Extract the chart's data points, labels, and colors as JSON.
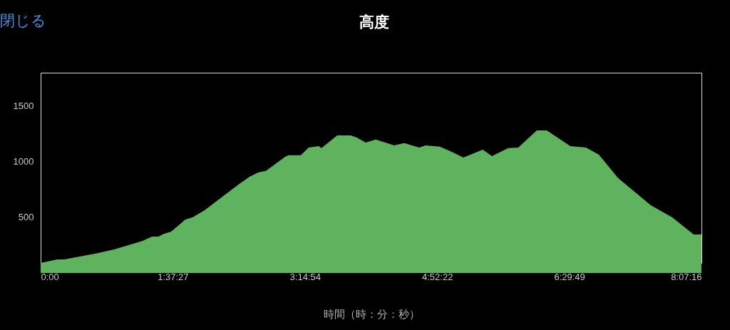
{
  "chart_data": {
    "type": "area",
    "title": "高度",
    "xlabel": "時間（時：分：秒）",
    "annotations": [
      "閉じる"
    ],
    "x": [
      0,
      0.2015,
      0.289,
      0.666,
      0.902,
      1.253,
      1.367,
      1.446,
      1.516,
      1.603,
      1.779,
      1.866,
      2.015,
      2.418,
      2.567,
      2.672,
      2.769,
      3.005,
      3.049,
      3.198,
      3.294,
      3.417,
      3.452,
      3.645,
      3.811,
      3.881,
      3.995,
      4.118,
      4.345,
      4.468,
      4.652,
      4.731,
      4.906,
      5.046,
      5.195,
      5.432,
      5.546,
      5.747,
      5.87,
      6.098,
      6.22,
      6.509,
      6.702,
      6.86,
      7.096,
      7.499,
      7.762,
      8.025,
      8.121
    ],
    "series": [
      {
        "color": "#5fb35f",
        "values": [
          90,
          122,
          122,
          173,
          212,
          288,
          327,
          327,
          353,
          372,
          481,
          500,
          564,
          788,
          865,
          904,
          917,
          1045,
          1058,
          1058,
          1128,
          1141,
          1122,
          1237,
          1237,
          1218,
          1173,
          1199,
          1147,
          1167,
          1128,
          1147,
          1135,
          1090,
          1038,
          1109,
          1051,
          1122,
          1128,
          1282,
          1282,
          1141,
          1128,
          1064,
          853,
          609,
          500,
          346,
          346
        ]
      }
    ],
    "xlim": [
      0,
      8.12111
    ],
    "xticks": [
      {
        "value": 0,
        "label": "0:00"
      },
      {
        "value": 1.62417,
        "label": "1:37:27"
      },
      {
        "value": 3.24833,
        "label": "3:14:54"
      },
      {
        "value": 4.87278,
        "label": "4:52:22"
      },
      {
        "value": 6.49694,
        "label": "6:29:49"
      },
      {
        "value": 8.12111,
        "label": "8:07:16"
      }
    ],
    "ylim": [
      90,
      1800
    ],
    "yticks": [
      500,
      1000,
      1500
    ],
    "grid": false
  }
}
